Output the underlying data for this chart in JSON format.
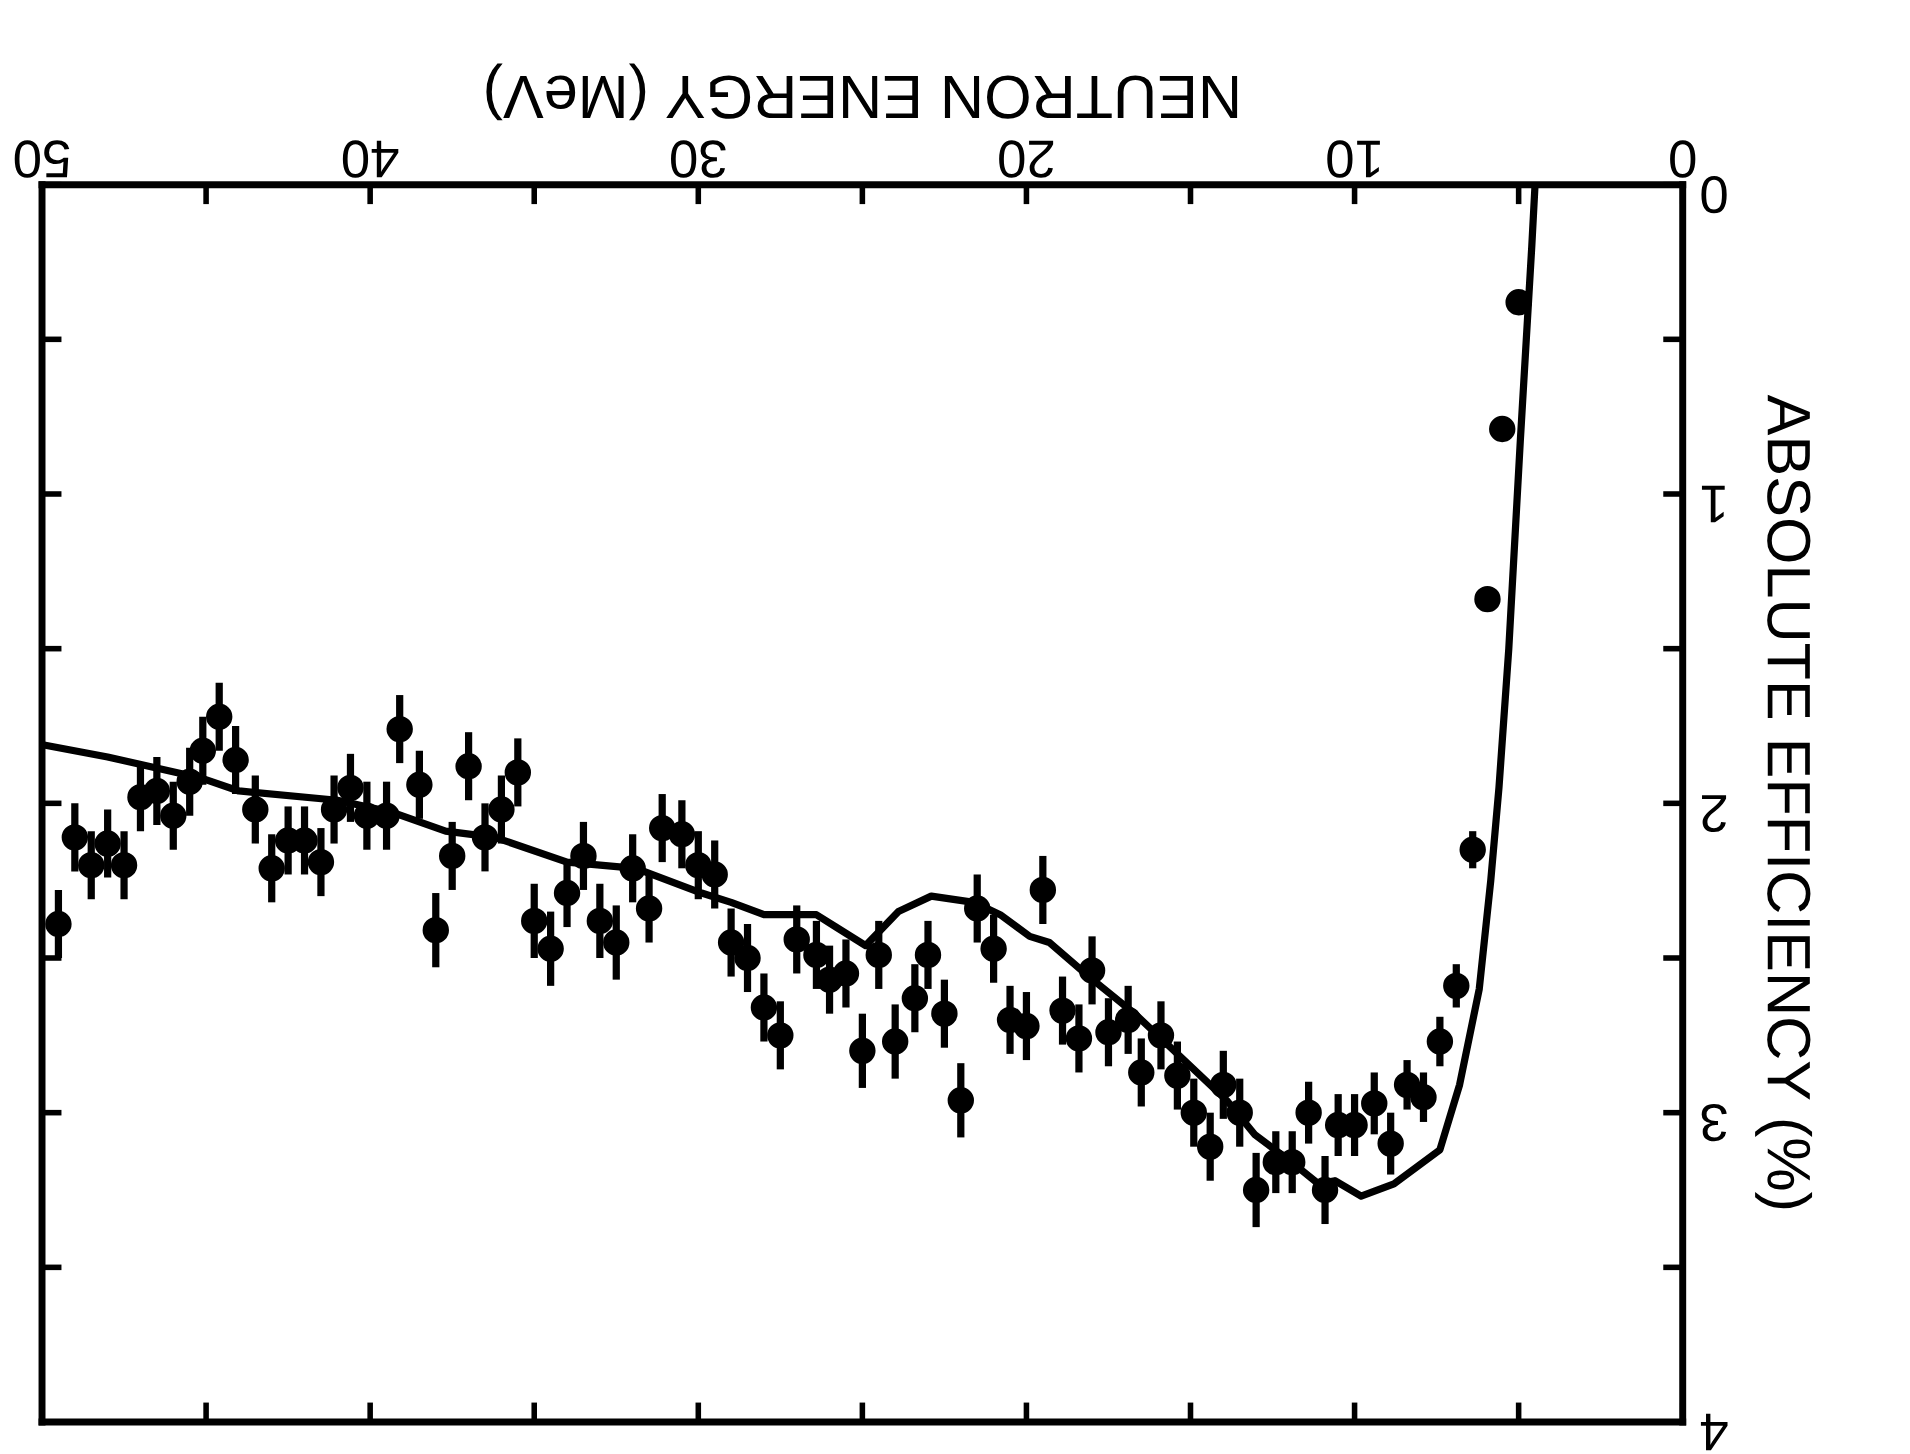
{
  "chart_data": {
    "type": "scatter",
    "xlabel": "NEUTRON ENERGY (MeV)",
    "ylabel": "ABSOLUTE EFFICIENCY (%)",
    "xlim": [
      50,
      0
    ],
    "ylim": [
      4,
      0
    ],
    "xticks": [
      0,
      {
        "value": 5,
        "label": null
      },
      10,
      {
        "value": 15,
        "label": null
      },
      20,
      {
        "value": 25,
        "label": null
      },
      30,
      {
        "value": 35,
        "label": null
      },
      40,
      {
        "value": 45,
        "label": null
      },
      50
    ],
    "yticks": [
      0,
      {
        "value": 0.5,
        "label": null
      },
      1,
      {
        "value": 1.5,
        "label": null
      },
      2,
      {
        "value": 2.5,
        "label": null
      },
      3,
      {
        "value": 3.5,
        "label": null
      },
      4
    ],
    "grid": false,
    "marker": "circle",
    "series": [
      {
        "color": "#000000",
        "x": [
          49.5,
          49.0,
          48.5,
          48.0,
          47.5,
          47.0,
          46.5,
          46.0,
          45.5,
          45.1,
          44.6,
          44.1,
          43.5,
          43.0,
          42.5,
          42.0,
          41.5,
          41.1,
          40.6,
          40.1,
          39.5,
          39.1,
          38.5,
          38.0,
          37.5,
          37.0,
          36.5,
          36.0,
          35.5,
          35.0,
          34.5,
          34.0,
          33.5,
          33.0,
          32.5,
          32.0,
          31.5,
          31.1,
          30.5,
          30.0,
          29.5,
          29.0,
          28.5,
          28.0,
          27.5,
          27.0,
          26.4,
          26.0,
          25.5,
          25.0,
          24.5,
          24.0,
          23.4,
          23.0,
          22.5,
          22.0,
          21.5,
          21.0,
          20.5,
          20.0,
          19.5,
          18.9,
          18.4,
          18.0,
          17.5,
          16.9,
          16.5,
          15.9,
          15.4,
          14.9,
          14.4,
          14.0,
          13.5,
          13.0,
          12.4,
          11.9,
          11.4,
          10.9,
          10.5,
          10.0,
          9.4,
          8.9,
          8.4,
          7.9,
          7.4,
          6.9,
          6.4,
          5.95,
          5.5,
          5.0
        ],
        "values": [
          2.39,
          2.11,
          2.2,
          2.13,
          2.2,
          1.98,
          1.96,
          2.04,
          1.93,
          1.83,
          1.72,
          1.86,
          2.02,
          2.21,
          2.12,
          2.12,
          2.19,
          2.02,
          1.95,
          2.04,
          2.04,
          1.76,
          1.94,
          2.41,
          2.17,
          1.88,
          2.11,
          2.02,
          1.9,
          2.38,
          2.47,
          2.29,
          2.17,
          2.38,
          2.45,
          2.21,
          2.34,
          2.08,
          2.1,
          2.2,
          2.23,
          2.45,
          2.5,
          2.66,
          2.75,
          2.44,
          2.49,
          2.57,
          2.55,
          2.8,
          2.49,
          2.77,
          2.63,
          2.49,
          2.68,
          2.96,
          2.34,
          2.47,
          2.7,
          2.72,
          2.28,
          2.67,
          2.76,
          2.54,
          2.74,
          2.7,
          2.87,
          2.75,
          2.88,
          3.0,
          3.11,
          2.91,
          3.0,
          3.25,
          3.16,
          3.16,
          3.0,
          3.25,
          3.04,
          3.04,
          2.97,
          3.1,
          2.91,
          2.95,
          2.77,
          2.59,
          2.15,
          1.34,
          0.79,
          0.38
        ],
        "errors": [
          0.11,
          0.11,
          0.11,
          0.11,
          0.11,
          0.11,
          0.11,
          0.11,
          0.11,
          0.11,
          0.11,
          0.11,
          0.11,
          0.11,
          0.11,
          0.11,
          0.11,
          0.11,
          0.11,
          0.11,
          0.11,
          0.11,
          0.11,
          0.12,
          0.11,
          0.11,
          0.11,
          0.11,
          0.11,
          0.12,
          0.12,
          0.11,
          0.11,
          0.12,
          0.12,
          0.11,
          0.11,
          0.11,
          0.11,
          0.11,
          0.11,
          0.11,
          0.11,
          0.11,
          0.11,
          0.11,
          0.11,
          0.11,
          0.11,
          0.12,
          0.11,
          0.12,
          0.11,
          0.11,
          0.11,
          0.12,
          0.11,
          0.11,
          0.11,
          0.11,
          0.11,
          0.11,
          0.11,
          0.11,
          0.11,
          0.11,
          0.11,
          0.11,
          0.11,
          0.11,
          0.11,
          0.11,
          0.11,
          0.12,
          0.1,
          0.1,
          0.1,
          0.11,
          0.1,
          0.1,
          0.1,
          0.1,
          0.08,
          0.08,
          0.08,
          0.07,
          0.06,
          null,
          null,
          null
        ]
      },
      {
        "type": "line",
        "color": "#000000",
        "marker": "none",
        "line_style": "solid",
        "x": [
          4.5,
          4.6,
          4.95,
          5.3,
          5.6,
          5.85,
          6.2,
          6.8,
          7.4,
          8.8,
          9.8,
          10.6,
          11.1,
          11.8,
          13.05,
          13.9,
          15.1,
          16.7,
          18.1,
          19.3,
          19.9,
          20.8,
          21.6,
          22.9,
          23.9,
          24.9,
          25.8,
          26.4,
          28.0,
          29.0,
          29.9,
          31.9,
          34.0,
          36.2,
          37.7,
          39.3,
          41.0,
          44.0,
          45.1,
          48.0,
          50.0
        ],
        "values": [
          0.0,
          0.2,
          0.83,
          1.5,
          1.95,
          2.25,
          2.6,
          2.91,
          3.12,
          3.23,
          3.27,
          3.22,
          3.23,
          3.17,
          3.07,
          2.96,
          2.84,
          2.68,
          2.56,
          2.45,
          2.43,
          2.36,
          2.32,
          2.3,
          2.35,
          2.46,
          2.4,
          2.36,
          2.36,
          2.32,
          2.29,
          2.21,
          2.19,
          2.11,
          2.09,
          2.03,
          1.99,
          1.96,
          1.92,
          1.85,
          1.81
        ]
      }
    ]
  }
}
